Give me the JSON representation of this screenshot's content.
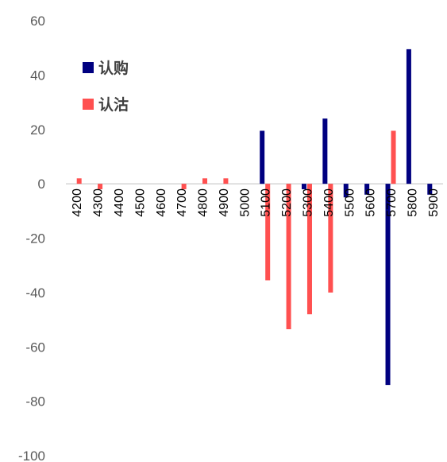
{
  "chart_data": {
    "type": "bar",
    "categories": [
      "4200",
      "4300",
      "4400",
      "4500",
      "4600",
      "4700",
      "4800",
      "4900",
      "5000",
      "5100",
      "5200",
      "5300",
      "5400",
      "5500",
      "5600",
      "5700",
      "5800",
      "5900"
    ],
    "series": [
      {
        "name": "认购",
        "color": "#000080",
        "values": [
          0,
          0,
          0,
          0,
          0,
          0,
          0,
          0,
          0,
          19.5,
          0,
          -2,
          24,
          -5,
          -4,
          -74,
          49.5,
          -4
        ]
      },
      {
        "name": "认沽",
        "color": "#FF5050",
        "values": [
          2,
          -2,
          0,
          0,
          0,
          -2,
          2,
          2,
          0,
          -35.5,
          -53.5,
          -48,
          -40,
          0,
          0,
          19.5,
          0,
          0
        ]
      }
    ],
    "yticks": [
      "60",
      "40",
      "20",
      "0",
      "-20",
      "-40",
      "-60",
      "-80",
      "-100"
    ],
    "ylim": [
      -100,
      60
    ],
    "grid": false,
    "legend": "upper-left inside plot"
  }
}
